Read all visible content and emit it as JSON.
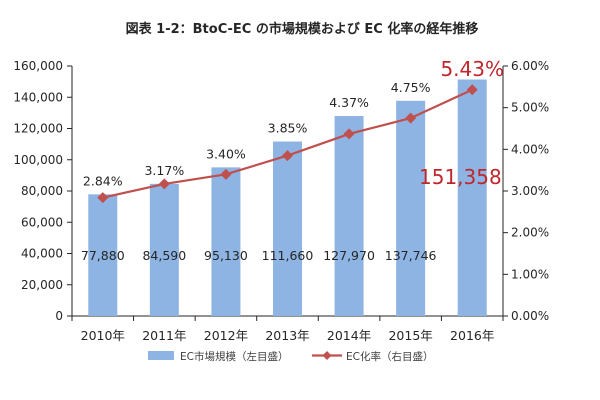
{
  "colors": {
    "bar": "#8EB4E3",
    "line": "#C0504D",
    "highlight": "#C0272D",
    "axis": "#262626"
  },
  "chart_data": {
    "type": "bar",
    "title": "図表 1-2：BtoC-EC の市場規模および EC 化率の経年推移",
    "categories": [
      "2010年",
      "2011年",
      "2012年",
      "2013年",
      "2014年",
      "2015年",
      "2016年"
    ],
    "series": [
      {
        "name": "EC市場規模（左目盛）",
        "type": "bar",
        "axis": "left",
        "values": [
          77880,
          84590,
          95130,
          111660,
          127970,
          137746,
          151358
        ],
        "labels": [
          "77,880",
          "84,590",
          "95,130",
          "111,660",
          "127,970",
          "137,746",
          "151,358"
        ]
      },
      {
        "name": "EC化率（右目盛）",
        "type": "line",
        "axis": "right",
        "values": [
          2.84,
          3.17,
          3.4,
          3.85,
          4.37,
          4.75,
          5.43
        ],
        "labels": [
          "2.84%",
          "3.17%",
          "3.40%",
          "3.85%",
          "4.37%",
          "4.75%",
          "5.43%"
        ]
      }
    ],
    "y_left": {
      "min": 0,
      "max": 160000,
      "ticks": [
        "0",
        "20,000",
        "40,000",
        "60,000",
        "80,000",
        "100,000",
        "120,000",
        "140,000",
        "160,000"
      ]
    },
    "y_right": {
      "min": 0,
      "max": 6,
      "ticks": [
        "0.00%",
        "1.00%",
        "2.00%",
        "3.00%",
        "4.00%",
        "5.00%",
        "6.00%"
      ]
    },
    "grid": false,
    "legend": "bottom",
    "highlighted_index": 6
  }
}
